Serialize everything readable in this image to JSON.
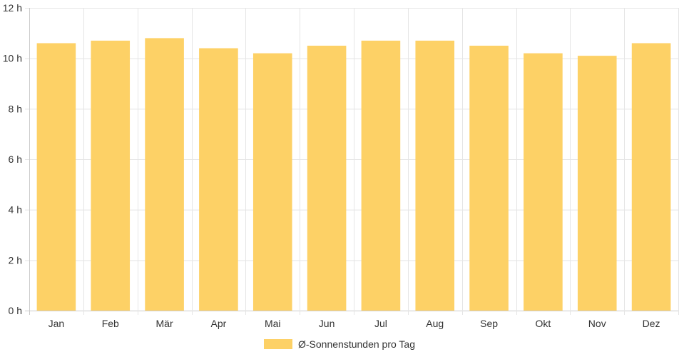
{
  "chart_data": {
    "type": "bar",
    "categories": [
      "Jan",
      "Feb",
      "Mär",
      "Apr",
      "Mai",
      "Jun",
      "Jul",
      "Aug",
      "Sep",
      "Okt",
      "Nov",
      "Dez"
    ],
    "series": [
      {
        "name": "Ø-Sonnenstunden pro Tag",
        "values": [
          10.6,
          10.7,
          10.8,
          10.4,
          10.2,
          10.5,
          10.7,
          10.7,
          10.5,
          10.2,
          10.1,
          10.6
        ],
        "color": "#fdd166"
      }
    ],
    "ylim": [
      0,
      12
    ],
    "yticks": [
      "0 h",
      "2 h",
      "4 h",
      "6 h",
      "8 h",
      "10 h",
      "12 h"
    ],
    "ytick_values": [
      0,
      2,
      4,
      6,
      8,
      10,
      12
    ],
    "grid": true,
    "legend": "bottom-center",
    "gridColor": "#e5e5e5",
    "axisColor": "#cccccc"
  }
}
